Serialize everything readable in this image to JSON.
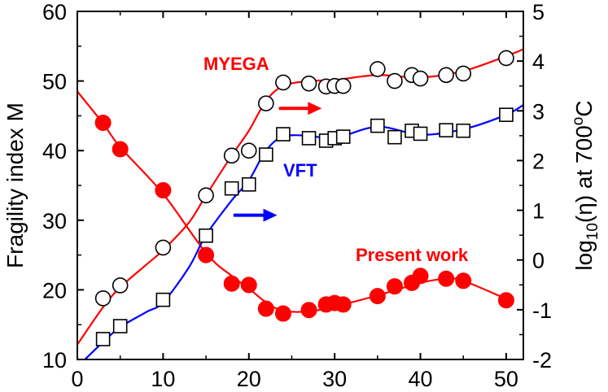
{
  "chart_data": {
    "type": "scatter",
    "xlabel": "",
    "ylabel_left": "Fragility index M",
    "ylabel_right": {
      "prefix": "log",
      "sub": "10",
      "mid": "(η) at 700",
      "sup": "o",
      "suffix": "C"
    },
    "xlim": [
      0,
      52
    ],
    "ylim_left": [
      10,
      60
    ],
    "ylim_right": [
      -2,
      5
    ],
    "x_ticks": [
      0,
      10,
      20,
      30,
      40,
      50
    ],
    "y_ticks_left": [
      10,
      20,
      30,
      40,
      50,
      60
    ],
    "y_ticks_right": [
      -2,
      -1,
      0,
      1,
      2,
      3,
      4,
      5
    ],
    "x_tick_labels": [
      "0",
      "10",
      "20",
      "30",
      "40",
      "50"
    ],
    "y_tick_labels_left": [
      "10",
      "20",
      "30",
      "40",
      "50",
      "60"
    ],
    "y_tick_labels_right": [
      "-2",
      "-1",
      "0",
      "1",
      "2",
      "3",
      "4",
      "5"
    ],
    "series": [
      {
        "name": "Present work",
        "axis": "left",
        "marker": "filled-circle",
        "color": "#ff0000",
        "x": [
          3,
          5,
          10,
          15,
          18,
          20,
          22,
          24,
          27,
          29,
          30,
          31,
          35,
          37,
          39,
          40,
          43,
          45,
          50
        ],
        "y": [
          44,
          40.2,
          34.3,
          25,
          20.9,
          20.7,
          17.3,
          16.6,
          17.1,
          17.9,
          18.1,
          17.9,
          19.1,
          20.5,
          21,
          22,
          21.6,
          21.3,
          18.5
        ],
        "curve_x": [
          0,
          3,
          5,
          10,
          15,
          18,
          20,
          22,
          24,
          27,
          30,
          35,
          40,
          43,
          45,
          50
        ],
        "curve_y": [
          48.5,
          43.9,
          40.5,
          33.8,
          25.3,
          22,
          20.2,
          18.2,
          17.0,
          16.9,
          17.6,
          19.2,
          21.0,
          21.6,
          21.3,
          18.7
        ]
      },
      {
        "name": "MYEGA",
        "axis": "right",
        "marker": "open-circle",
        "color": "#ff0000",
        "x": [
          3,
          5,
          10,
          15,
          18,
          20,
          22,
          24,
          27,
          29,
          30,
          31,
          35,
          37,
          39,
          40,
          43,
          45,
          50
        ],
        "y": [
          -0.77,
          -0.51,
          0.25,
          1.3,
          2.1,
          2.2,
          3.15,
          3.57,
          3.55,
          3.49,
          3.5,
          3.5,
          3.84,
          3.6,
          3.72,
          3.65,
          3.72,
          3.75,
          4.06
        ],
        "curve_x": [
          0,
          3,
          5,
          8,
          10,
          13,
          15,
          18,
          20,
          22,
          24,
          27,
          30,
          35,
          40,
          45,
          50,
          52
        ],
        "curve_y": [
          -1.7,
          -0.95,
          -0.55,
          -0.1,
          0.2,
          0.75,
          1.3,
          2.1,
          2.6,
          3.2,
          3.5,
          3.6,
          3.62,
          3.72,
          3.67,
          3.8,
          4.1,
          4.24
        ]
      },
      {
        "name": "VFT",
        "axis": "right",
        "marker": "open-square",
        "color": "#0000ff",
        "x": [
          3,
          5,
          10,
          15,
          18,
          20,
          22,
          24,
          27,
          29,
          30,
          31,
          35,
          37,
          39,
          40,
          43,
          45,
          50
        ],
        "y": [
          -1.59,
          -1.33,
          -0.8,
          0.49,
          1.44,
          1.52,
          2.12,
          2.53,
          2.45,
          2.4,
          2.45,
          2.48,
          2.7,
          2.47,
          2.6,
          2.54,
          2.61,
          2.6,
          2.92
        ],
        "curve_x": [
          0,
          3,
          5,
          8,
          10,
          13,
          15,
          18,
          20,
          22,
          24,
          27,
          30,
          35,
          40,
          45,
          50,
          52
        ],
        "curve_y": [
          -2.15,
          -1.65,
          -1.35,
          -1.05,
          -0.85,
          -0.15,
          0.5,
          1.2,
          1.6,
          2.2,
          2.48,
          2.5,
          2.45,
          2.68,
          2.52,
          2.63,
          2.92,
          3.12
        ]
      }
    ],
    "annotations": [
      {
        "text": "MYEGA",
        "color": "#ff0000"
      },
      {
        "text": "VFT",
        "color": "#0000ff"
      },
      {
        "text": "Present work",
        "color": "#ff0000"
      }
    ],
    "arrows": [
      {
        "series": "MYEGA",
        "direction": "right",
        "color": "#ff0000",
        "x_from": 23.5,
        "x_to": 28.5,
        "y_right": 3.05
      },
      {
        "series": "VFT",
        "direction": "right",
        "color": "#0000ff",
        "x_from": 18.2,
        "x_to": 23.3,
        "y_right": 0.9
      }
    ],
    "grid": false
  }
}
